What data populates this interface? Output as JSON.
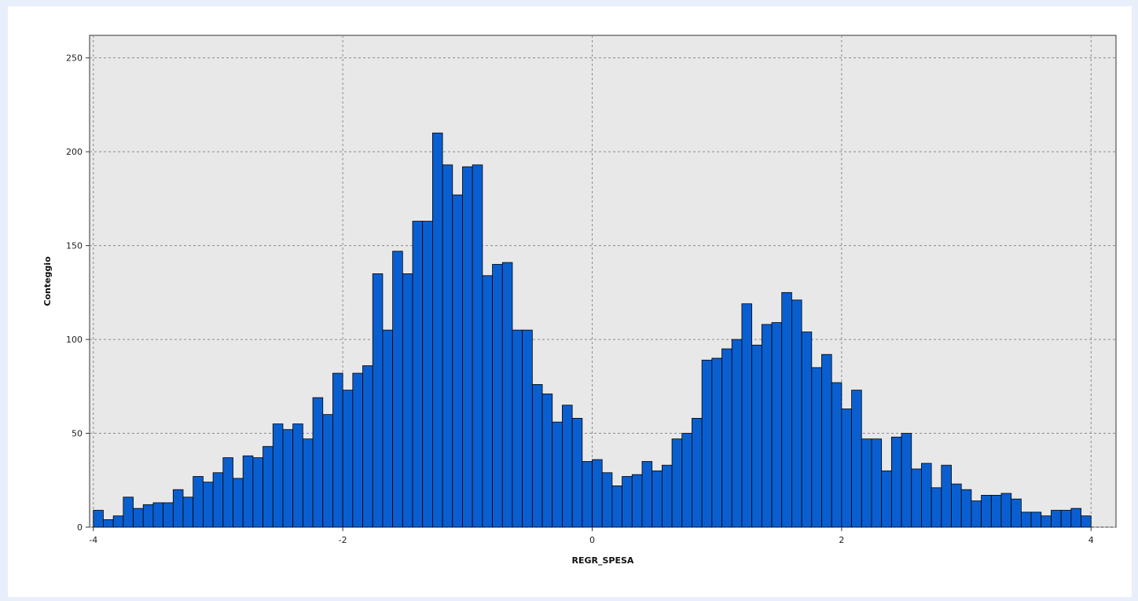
{
  "chart_data": {
    "type": "bar",
    "title": "",
    "xlabel": "REGR_SPESA",
    "ylabel": "Conteggio",
    "xlim": [
      -4.03,
      4.2
    ],
    "ylim": [
      0,
      262
    ],
    "x_ticks": [
      -4,
      -2,
      0,
      2,
      4
    ],
    "x_tick_labels": [
      "-4",
      "-2",
      "0",
      "2",
      "4"
    ],
    "y_ticks": [
      0,
      50,
      100,
      150,
      200,
      250
    ],
    "y_tick_labels": [
      "0",
      "50",
      "100",
      "150",
      "200",
      "250"
    ],
    "grid": true,
    "legend": "none",
    "bin_start": -4.0,
    "bin_width": 0.08,
    "values": [
      9,
      4,
      6,
      16,
      10,
      12,
      13,
      13,
      20,
      16,
      27,
      24,
      29,
      37,
      26,
      38,
      37,
      43,
      55,
      52,
      55,
      47,
      69,
      60,
      82,
      73,
      82,
      86,
      135,
      105,
      147,
      135,
      163,
      163,
      210,
      193,
      177,
      192,
      193,
      134,
      140,
      141,
      105,
      105,
      76,
      71,
      56,
      65,
      58,
      35,
      36,
      29,
      22,
      27,
      28,
      35,
      30,
      33,
      47,
      50,
      58,
      89,
      90,
      95,
      100,
      119,
      97,
      108,
      109,
      125,
      121,
      104,
      85,
      92,
      77,
      63,
      73,
      47,
      47,
      30,
      48,
      50,
      31,
      34,
      21,
      33,
      23,
      20,
      14,
      17,
      17,
      18,
      15,
      8,
      8,
      6,
      9,
      9,
      10,
      6
    ],
    "colors": {
      "bar_fill": "#0a5fd0",
      "bar_stroke": "#000000",
      "plot_bg": "#e8e8e8",
      "grid": "#8a8a8a",
      "page_bg": "#e8eefa"
    }
  }
}
